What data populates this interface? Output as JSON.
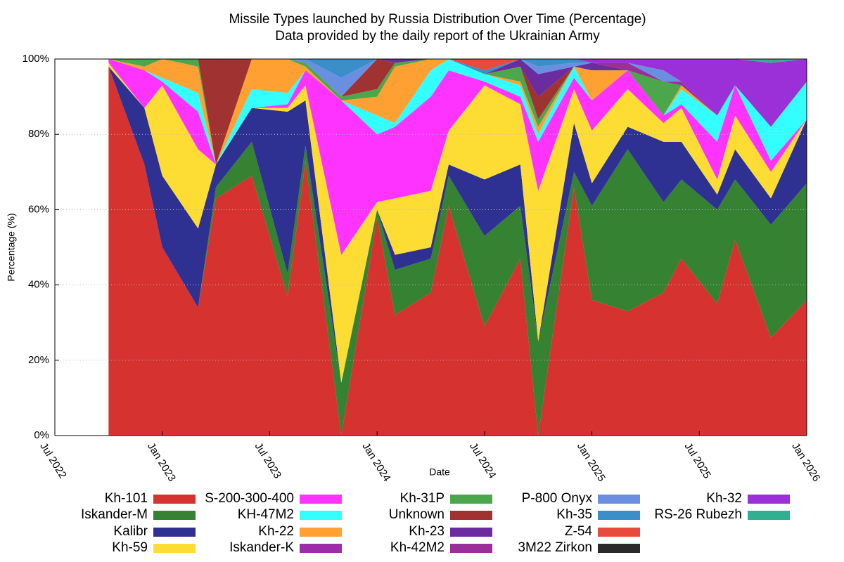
{
  "chart_data": {
    "type": "stacked_area",
    "title": "Missile Types launched by Russia Distribution Over Time (Percentage)",
    "subtitle": "Data provided by the daily report of the Ukrainian Army",
    "x_label": "Date",
    "y_label": "Percentage (%)",
    "x": [
      "2022-10",
      "2022-12",
      "2023-01",
      "2023-03",
      "2023-04",
      "2023-06",
      "2023-08",
      "2023-09",
      "2023-11",
      "2024-01",
      "2024-02",
      "2024-04",
      "2024-05",
      "2024-07",
      "2024-09",
      "2024-10",
      "2024-12",
      "2025-01",
      "2025-03",
      "2025-05",
      "2025-06",
      "2025-08",
      "2025-09",
      "2025-11",
      "2026-01"
    ],
    "xlim": [
      "2022-07",
      "2026-01"
    ],
    "xticks": [
      {
        "value": "2022-07",
        "label": "Jul 2022"
      },
      {
        "value": "2023-01",
        "label": "Jan 2023"
      },
      {
        "value": "2023-07",
        "label": "Jul 2023"
      },
      {
        "value": "2024-01",
        "label": "Jan 2024"
      },
      {
        "value": "2024-07",
        "label": "Jul 2024"
      },
      {
        "value": "2025-01",
        "label": "Jan 2025"
      },
      {
        "value": "2025-07",
        "label": "Jul 2025"
      },
      {
        "value": "2026-01",
        "label": "Jan 2026"
      }
    ],
    "ylim": [
      0,
      100
    ],
    "yticks": [
      {
        "value": 0,
        "label": "0%"
      },
      {
        "value": 20,
        "label": "20%"
      },
      {
        "value": 40,
        "label": "40%"
      },
      {
        "value": 60,
        "label": "60%"
      },
      {
        "value": 80,
        "label": "80%"
      },
      {
        "value": 100,
        "label": "100%"
      }
    ],
    "grid": true,
    "legend": "bottom",
    "series": [
      {
        "name": "Kh-101",
        "color": "#d63230",
        "values": [
          98,
          72,
          50,
          34,
          63,
          69,
          37,
          73,
          0,
          58,
          32,
          38,
          61,
          29,
          47,
          0,
          66,
          36,
          33,
          38,
          47,
          35,
          52,
          26,
          36
        ]
      },
      {
        "name": "Iskander-M",
        "color": "#348232",
        "values": [
          0,
          0,
          0,
          0,
          3,
          9,
          6,
          4,
          14,
          2,
          12,
          9,
          8,
          24,
          14,
          25,
          4,
          25,
          43,
          24,
          21,
          25,
          16,
          30,
          31
        ]
      },
      {
        "name": "Kalibr",
        "color": "#2e3192",
        "values": [
          0,
          15,
          19,
          21,
          6,
          9,
          43,
          12,
          0,
          0,
          4,
          3,
          3,
          15,
          11,
          0,
          13,
          6,
          6,
          16,
          10,
          4,
          8,
          7,
          17
        ]
      },
      {
        "name": "Kh-59",
        "color": "#fddc34",
        "values": [
          1,
          0,
          24,
          21,
          0,
          0,
          1,
          4,
          34,
          2,
          15,
          15,
          9,
          25,
          16,
          40,
          9,
          14,
          10,
          5,
          9,
          4,
          9,
          7,
          0
        ]
      },
      {
        "name": "S-200-300-400",
        "color": "#ff33ff",
        "values": [
          1,
          10,
          1,
          10,
          0,
          0,
          1,
          4,
          41,
          18,
          19,
          25,
          16,
          1,
          2,
          13,
          3,
          8,
          5,
          2,
          1,
          10,
          8,
          3,
          0
        ]
      },
      {
        "name": "KH-47M2",
        "color": "#33ffff",
        "values": [
          0,
          0,
          1,
          5,
          0,
          5,
          3,
          0,
          0,
          5,
          1,
          7,
          3,
          2,
          3,
          2,
          3,
          0,
          0,
          0,
          4,
          7,
          0,
          9,
          10
        ]
      },
      {
        "name": "Kh-22",
        "color": "#ffa033",
        "values": [
          0,
          1,
          5,
          7,
          0,
          8,
          9,
          1,
          0,
          5,
          15,
          3,
          0,
          0,
          1,
          2,
          0,
          8,
          0,
          0,
          1,
          0,
          0,
          0,
          0
        ]
      },
      {
        "name": "Iskander-K",
        "color": "#9c2ca8",
        "values": [
          0,
          0,
          0,
          0,
          0,
          0,
          0,
          0,
          0,
          0,
          0,
          0,
          0,
          0,
          0,
          0,
          0,
          0,
          0,
          0,
          0,
          0,
          0,
          0,
          0
        ]
      },
      {
        "name": "Kh-31P",
        "color": "#4ca64c",
        "values": [
          0,
          2,
          0,
          2,
          0,
          0,
          0,
          1,
          1,
          2,
          1,
          0,
          0,
          0,
          4,
          2,
          0,
          0,
          0,
          9,
          0,
          0,
          0,
          0,
          0
        ]
      },
      {
        "name": "Unknown",
        "color": "#a03232",
        "values": [
          0,
          0,
          0,
          0,
          28,
          0,
          0,
          0,
          0,
          8,
          0,
          0,
          0,
          0,
          0,
          6,
          0,
          0,
          0,
          0,
          0,
          0,
          0,
          0,
          0
        ]
      },
      {
        "name": "Kh-23",
        "color": "#6a2c9e",
        "values": [
          0,
          0,
          0,
          0,
          0,
          0,
          0,
          0,
          0,
          0,
          1,
          0,
          0,
          0,
          2,
          6,
          0,
          2,
          0,
          0,
          0,
          0,
          0,
          0,
          0
        ]
      },
      {
        "name": "Kh-42M2",
        "color": "#9a2f9a",
        "values": [
          0,
          0,
          0,
          0,
          0,
          0,
          0,
          0,
          0,
          0,
          0,
          0,
          0,
          0,
          0,
          0,
          0,
          0,
          2,
          0,
          1,
          0,
          0,
          0,
          0
        ]
      },
      {
        "name": "P-800 Onyx",
        "color": "#6b8fe0",
        "values": [
          0,
          0,
          0,
          0,
          0,
          0,
          0,
          1,
          5,
          0,
          0,
          0,
          0,
          0,
          0,
          2,
          1,
          0,
          0,
          3,
          0,
          0,
          0,
          0,
          0
        ]
      },
      {
        "name": "Kh-35",
        "color": "#3a8fc8",
        "values": [
          0,
          0,
          0,
          0,
          0,
          0,
          0,
          0,
          5,
          0,
          0,
          0,
          0,
          1,
          0,
          2,
          1,
          0,
          0,
          0,
          0,
          0,
          0,
          0,
          0
        ]
      },
      {
        "name": "Z-54",
        "color": "#e84a3c",
        "values": [
          0,
          0,
          0,
          0,
          0,
          0,
          0,
          0,
          0,
          0,
          0,
          0,
          0,
          3,
          0,
          0,
          0,
          0,
          0,
          0,
          0,
          0,
          0,
          0,
          0
        ]
      },
      {
        "name": "3M22 Zirkon",
        "color": "#2a2a2a",
        "values": [
          0,
          0,
          0,
          0,
          0,
          0,
          0,
          0,
          0,
          0,
          0,
          0,
          0,
          0,
          0,
          0,
          0,
          0,
          0,
          0,
          0,
          0,
          0,
          0,
          0
        ]
      },
      {
        "name": "Kh-32",
        "color": "#9b30d8",
        "values": [
          0,
          0,
          0,
          0,
          0,
          0,
          0,
          0,
          0,
          0,
          0,
          0,
          0,
          0,
          0,
          0,
          0,
          1,
          1,
          3,
          6,
          15,
          7,
          17,
          6
        ]
      },
      {
        "name": "RS-26 Rubezh",
        "color": "#30b090",
        "values": [
          0,
          0,
          0,
          0,
          0,
          0,
          0,
          0,
          0,
          0,
          0,
          0,
          0,
          0,
          0,
          0,
          0,
          0,
          0,
          0,
          0,
          0,
          0,
          1,
          0
        ]
      }
    ]
  }
}
